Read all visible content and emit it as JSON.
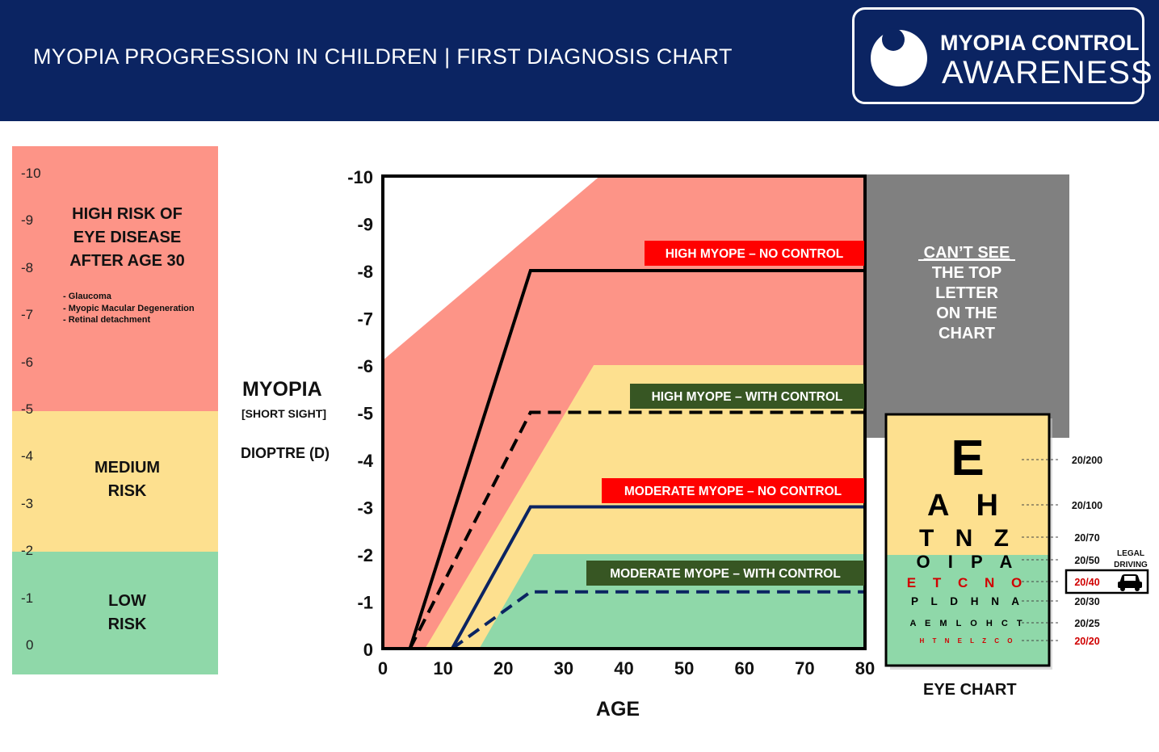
{
  "header": {
    "title_main": "MYOPIA PROGRESSION IN CHILDREN",
    "separator": "|",
    "title_sub": "FIRST DIAGNOSIS CHART",
    "logo_line1": "MYOPIA CONTROL",
    "logo_line2": "AWARENESS"
  },
  "risk_panel": {
    "ticks": [
      "-10",
      "-9",
      "-8",
      "-7",
      "-6",
      "-5",
      "-4",
      "-3",
      "-2",
      "-1",
      "0"
    ],
    "high": {
      "line1": "HIGH RISK OF",
      "line2": "EYE DISEASE",
      "line3": "AFTER AGE 30",
      "color": "#fd9487"
    },
    "diseases": [
      "- Glaucoma",
      "- Myopic Macular Degeneration",
      "- Retinal detachment"
    ],
    "medium": {
      "line1": "MEDIUM",
      "line2": "RISK",
      "color": "#fde08f"
    },
    "low": {
      "line1": "LOW",
      "line2": "RISK",
      "color": "#8fd8a9"
    }
  },
  "y_title": {
    "line1": "MYOPIA",
    "line2": "[SHORT SIGHT]",
    "line3": "DIOPTRE (D)"
  },
  "chart_data": {
    "type": "line",
    "title": "MYOPIA PROGRESSION IN CHILDREN | FIRST DIAGNOSIS CHART",
    "xlabel": "AGE",
    "ylabel": "DIOPTRE (D)",
    "xlim": [
      0,
      80
    ],
    "ylim": [
      0,
      -10
    ],
    "x_ticks": [
      0,
      10,
      20,
      30,
      40,
      50,
      60,
      70,
      80
    ],
    "y_ticks": [
      0,
      -1,
      -2,
      -3,
      -4,
      -5,
      -6,
      -7,
      -8,
      -9,
      -10
    ],
    "bands": [
      {
        "name": "high-risk-zone",
        "color": "#fd9487",
        "polygon": [
          [
            0,
            -6.1
          ],
          [
            36,
            -10
          ],
          [
            80,
            -10
          ],
          [
            80,
            0
          ],
          [
            0,
            0
          ]
        ]
      },
      {
        "name": "medium-risk-zone",
        "color": "#fde08f",
        "polygon": [
          [
            7,
            0
          ],
          [
            35,
            -6
          ],
          [
            80,
            -6
          ],
          [
            80,
            0
          ]
        ]
      },
      {
        "name": "low-risk-zone",
        "color": "#8fd8a9",
        "polygon": [
          [
            16,
            0
          ],
          [
            25,
            -2
          ],
          [
            80,
            -2
          ],
          [
            80,
            0
          ]
        ]
      }
    ],
    "series": [
      {
        "name": "HIGH MYOPE – NO CONTROL",
        "x": [
          4.5,
          24.5,
          80
        ],
        "y": [
          0,
          -8,
          -8
        ],
        "color": "#000000",
        "dash": false,
        "label_bg": "#ff0000"
      },
      {
        "name": "HIGH MYOPE – WITH CONTROL",
        "x": [
          4.5,
          24.5,
          80
        ],
        "y": [
          0,
          -5,
          -5
        ],
        "color": "#000000",
        "dash": true,
        "label_bg": "#375623"
      },
      {
        "name": "MODERATE MYOPE – NO CONTROL",
        "x": [
          11.5,
          24.5,
          80
        ],
        "y": [
          0,
          -3,
          -3
        ],
        "color": "#0b2462",
        "dash": false,
        "label_bg": "#ff0000"
      },
      {
        "name": "MODERATE MYOPE – WITH CONTROL",
        "x": [
          11.5,
          24.5,
          80
        ],
        "y": [
          0,
          -1.2,
          -1.2
        ],
        "color": "#0b2462",
        "dash": true,
        "label_bg": "#375623"
      }
    ]
  },
  "cant_see": {
    "underlined": "CAN’T SEE",
    "lines": [
      "THE TOP",
      "LETTER",
      "ON THE",
      "CHART"
    ]
  },
  "eye_chart": {
    "label": "EYE CHART",
    "rows": [
      {
        "letters": "E",
        "acuity": "20/200",
        "red": false
      },
      {
        "letters": "A H",
        "acuity": "20/100",
        "red": false
      },
      {
        "letters": "T N Z",
        "acuity": "20/70",
        "red": false
      },
      {
        "letters": "O I P A",
        "acuity": "20/50",
        "red": false
      },
      {
        "letters": "E T C N O",
        "acuity": "20/40",
        "red": true
      },
      {
        "letters": "P L D H N A",
        "acuity": "20/30",
        "red": false
      },
      {
        "letters": "A E M L O H C T",
        "acuity": "20/25",
        "red": false
      },
      {
        "letters": "H T N E L Z C O",
        "acuity": "20/20",
        "red": true
      }
    ],
    "legal_driving": [
      "LEGAL",
      "DRIVING"
    ],
    "car_icon": "car-icon"
  }
}
